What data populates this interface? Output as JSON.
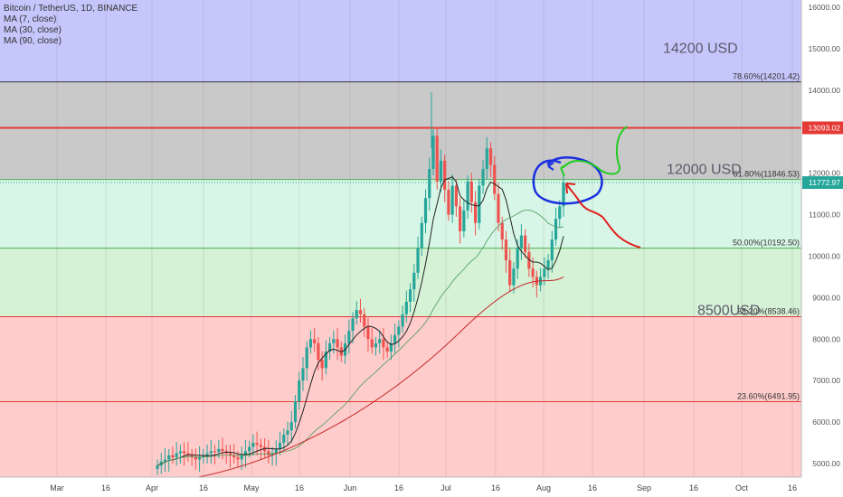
{
  "legend": {
    "title": "Bitcoin / TetherUS, 1D, BINANCE",
    "indicators": [
      "MA (7, close)",
      "MA (30, close)",
      "MA (90, close)"
    ]
  },
  "colors": {
    "zone_top": "#c5c6fb",
    "zone_grey": "#c9c9c9",
    "zone_green_light": "#d8f6e7",
    "zone_green": "#d5f1d6",
    "zone_red": "#ffcccc",
    "up_candle": "#26a69a",
    "down_candle": "#ef5350",
    "resistance": "#e53935",
    "ma7": "#222222",
    "ma30": "#4a9a5a",
    "ma90": "#c62828",
    "annot_blue": "#1a2fe0",
    "annot_green": "#22cc22",
    "annot_red": "#e02020"
  },
  "chart_data": {
    "type": "candlestick",
    "symbol": "Bitcoin / TetherUS, 1D, BINANCE",
    "ylim": [
      4700,
      16200
    ],
    "y_ticks": [
      "16000.00",
      "15000.00",
      "14000.00",
      "13000.00",
      "12000.00",
      "11000.00",
      "10000.00",
      "9000.00",
      "8000.00",
      "7000.00",
      "6000.00",
      "5000.00"
    ],
    "x_ticks": [
      "Mar",
      "16",
      "Apr",
      "16",
      "May",
      "16",
      "Jun",
      "16",
      "Jul",
      "16",
      "Aug",
      "16",
      "Sep",
      "16",
      "Oct",
      "16"
    ],
    "fib_levels": [
      {
        "label": "78.60%(14201.42)",
        "value": 14201.42,
        "color": "#333333"
      },
      {
        "label": "61.80%(11846.53)",
        "value": 11846.53,
        "color": "#4caf50"
      },
      {
        "label": "50.00%(10192.50)",
        "value": 10192.5,
        "color": "#4caf50"
      },
      {
        "label": "38.20%(8538.46)",
        "value": 8538.46,
        "color": "#e53935"
      },
      {
        "label": "23.60%(6491.95)",
        "value": 6491.95,
        "color": "#e53935"
      }
    ],
    "resistance": {
      "value": 13093.02,
      "label": "13093.02"
    },
    "last_price": {
      "value": 11772.97,
      "label": "11772.97"
    },
    "zone_labels": [
      "14200 USD",
      "12000 USD",
      "8500USD"
    ],
    "closes": [
      4950,
      5050,
      5100,
      5200,
      5150,
      5250,
      5300,
      5250,
      5200,
      5150,
      5100,
      5150,
      5200,
      5250,
      5300,
      5280,
      5350,
      5300,
      5250,
      5200,
      5150,
      5100,
      5200,
      5300,
      5400,
      5500,
      5450,
      5400,
      5300,
      5200,
      5250,
      5350,
      5500,
      5700,
      5800,
      6000,
      6500,
      7000,
      7300,
      7800,
      8000,
      7900,
      7500,
      7300,
      7700,
      7900,
      8000,
      7800,
      7600,
      7900,
      8200,
      8500,
      8700,
      8600,
      8300,
      8000,
      7800,
      7900,
      8000,
      7800,
      7700,
      7900,
      8100,
      8300,
      8600,
      8900,
      9200,
      9600,
      10200,
      10800,
      11400,
      12100,
      12900,
      11800,
      12300,
      11600,
      11000,
      11700,
      11200,
      10600,
      11100,
      11800,
      11300,
      10800,
      11700,
      12100,
      12600,
      12200,
      11500,
      10800,
      10400,
      9900,
      9300,
      9700,
      10200,
      10500,
      10100,
      9700,
      9500,
      9300,
      9500,
      9700,
      9900,
      10400,
      10900,
      11200,
      11772.97
    ],
    "highs_note": "peak high 13900 near Jul; dip low ~9000 late Jul",
    "ma90_points": [
      [
        0,
        4400
      ],
      [
        60,
        6300
      ],
      [
        100,
        8200
      ],
      [
        135,
        9350
      ]
    ]
  }
}
